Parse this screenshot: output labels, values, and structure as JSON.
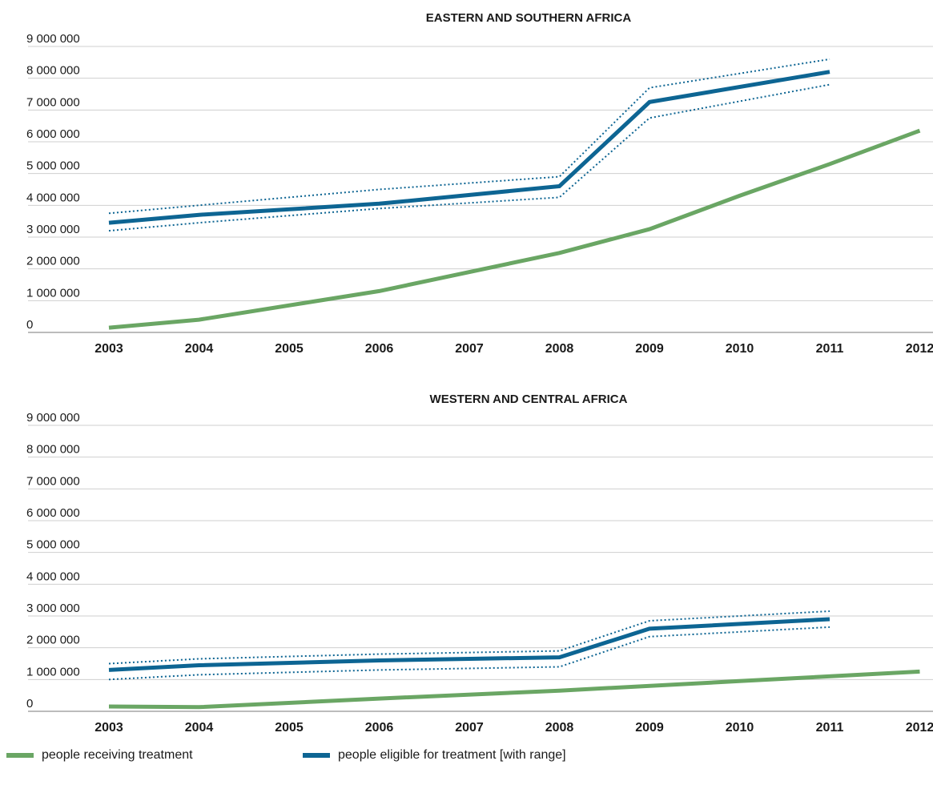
{
  "colors": {
    "treatment": "#6aa664",
    "eligible": "#0d6593",
    "grid": "#cfcfcf",
    "axis": "#7a7a7a"
  },
  "chart_data": [
    {
      "type": "line",
      "title": "EASTERN AND SOUTHERN AFRICA",
      "ylim": [
        0,
        9000000
      ],
      "yticks": [
        0,
        1000000,
        2000000,
        3000000,
        4000000,
        5000000,
        6000000,
        7000000,
        8000000,
        9000000
      ],
      "ytick_labels": [
        "0",
        "1 000 000",
        "2 000 000",
        "3 000 000",
        "4 000 000",
        "5 000 000",
        "6 000 000",
        "7 000 000",
        "8 000 000",
        "9 000 000"
      ],
      "categories": [
        "2003",
        "2004",
        "2005",
        "2006",
        "2007",
        "2008",
        "2009",
        "2010",
        "2011",
        "2012"
      ],
      "grid": true,
      "series": [
        {
          "key": "treatment",
          "x": [
            2003,
            2004,
            2006,
            2008,
            2009,
            2010,
            2011,
            2012
          ],
          "values": [
            150000,
            400000,
            1300000,
            2500000,
            3250000,
            4300000,
            5300000,
            6350000
          ]
        },
        {
          "key": "eligible",
          "x": [
            2003,
            2004,
            2006,
            2008,
            2009,
            2011
          ],
          "values": [
            3450000,
            3700000,
            4050000,
            4600000,
            7250000,
            8200000
          ],
          "low": [
            3200000,
            3450000,
            3900000,
            4250000,
            6750000,
            7800000
          ],
          "high": [
            3750000,
            4000000,
            4500000,
            4900000,
            7700000,
            8600000
          ]
        }
      ]
    },
    {
      "type": "line",
      "title": "WESTERN AND CENTRAL AFRICA",
      "ylim": [
        0,
        9000000
      ],
      "yticks": [
        0,
        1000000,
        2000000,
        3000000,
        4000000,
        5000000,
        6000000,
        7000000,
        8000000,
        9000000
      ],
      "ytick_labels": [
        "0",
        "1 000 000",
        "2 000 000",
        "3 000 000",
        "4 000 000",
        "5 000 000",
        "6 000 000",
        "7 000 000",
        "8 000 000",
        "9 000 000"
      ],
      "categories": [
        "2003",
        "2004",
        "2005",
        "2006",
        "2007",
        "2008",
        "2009",
        "2010",
        "2011",
        "2012"
      ],
      "grid": true,
      "series": [
        {
          "key": "treatment",
          "x": [
            2003,
            2004,
            2006,
            2008,
            2010,
            2012
          ],
          "values": [
            150000,
            130000,
            400000,
            650000,
            950000,
            1250000
          ]
        },
        {
          "key": "eligible",
          "x": [
            2003,
            2004,
            2006,
            2008,
            2009,
            2011
          ],
          "values": [
            1300000,
            1450000,
            1600000,
            1700000,
            2600000,
            2900000
          ],
          "low": [
            1000000,
            1150000,
            1300000,
            1400000,
            2350000,
            2650000
          ],
          "high": [
            1500000,
            1650000,
            1800000,
            1900000,
            2850000,
            3150000
          ]
        }
      ]
    }
  ],
  "legend": {
    "placement": "bottom-left",
    "items": [
      {
        "key": "treatment",
        "label": "people receiving treatment"
      },
      {
        "key": "eligible",
        "label": "people eligible for treatment [with range]"
      }
    ]
  }
}
